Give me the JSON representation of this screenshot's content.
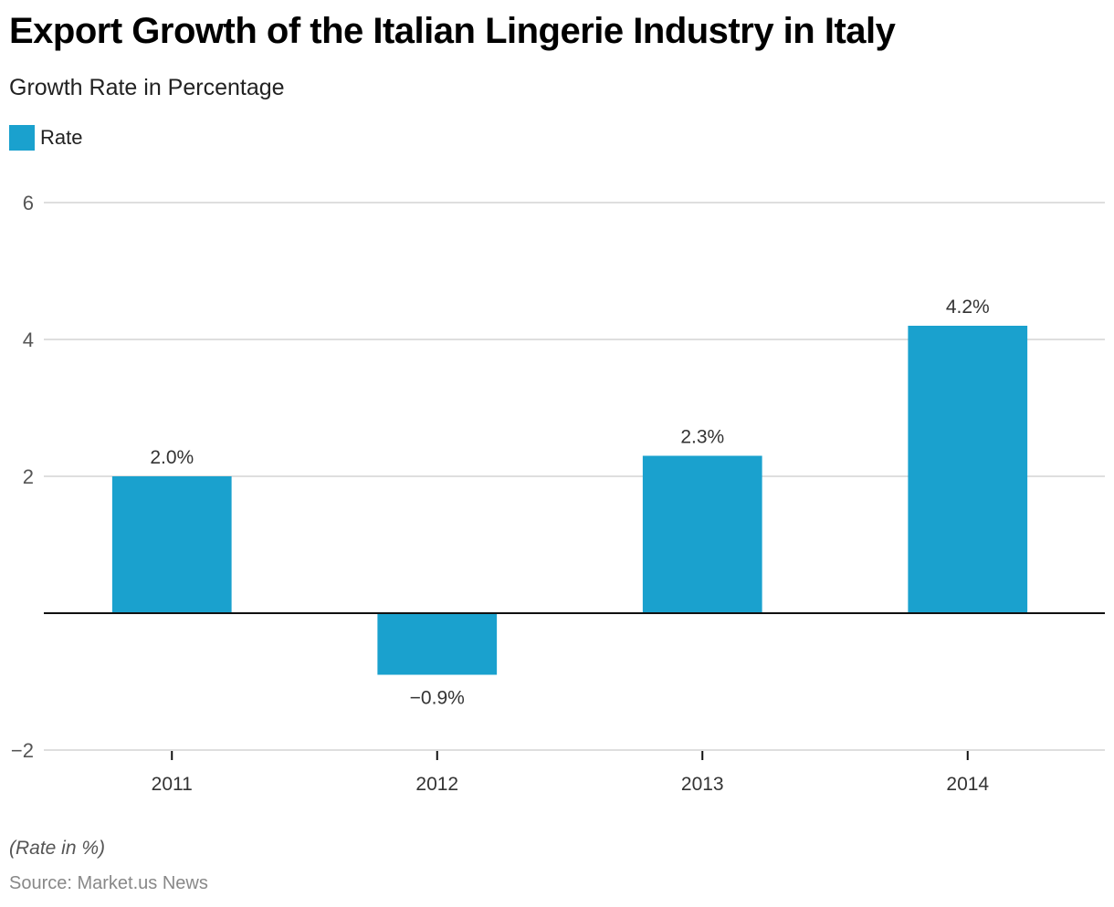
{
  "header": {
    "title": "Export Growth of the Italian Lingerie Industry in Italy",
    "subtitle": "Growth Rate in Percentage"
  },
  "legend": [
    {
      "label": "Rate",
      "color": "#1aa1ce"
    }
  ],
  "footer": {
    "note": "(Rate in %)",
    "source": "Source: Market.us News"
  },
  "chart_data": {
    "type": "bar",
    "title": "Export Growth of the Italian Lingerie Industry in Italy",
    "subtitle": "Growth Rate in Percentage",
    "categories": [
      "2011",
      "2012",
      "2013",
      "2014"
    ],
    "series": [
      {
        "name": "Rate",
        "color": "#1aa1ce",
        "values": [
          2.0,
          -0.9,
          2.3,
          4.2
        ],
        "labels": [
          "2.0%",
          "−0.9%",
          "2.3%",
          "4.2%"
        ]
      }
    ],
    "xlabel": "",
    "ylabel": "",
    "ylim": [
      -2,
      6
    ],
    "yticks": [
      -2,
      2,
      4,
      6
    ],
    "ytick_labels": [
      "−2",
      "2",
      "4",
      "6"
    ],
    "grid": true,
    "legend_position": "top-left"
  }
}
